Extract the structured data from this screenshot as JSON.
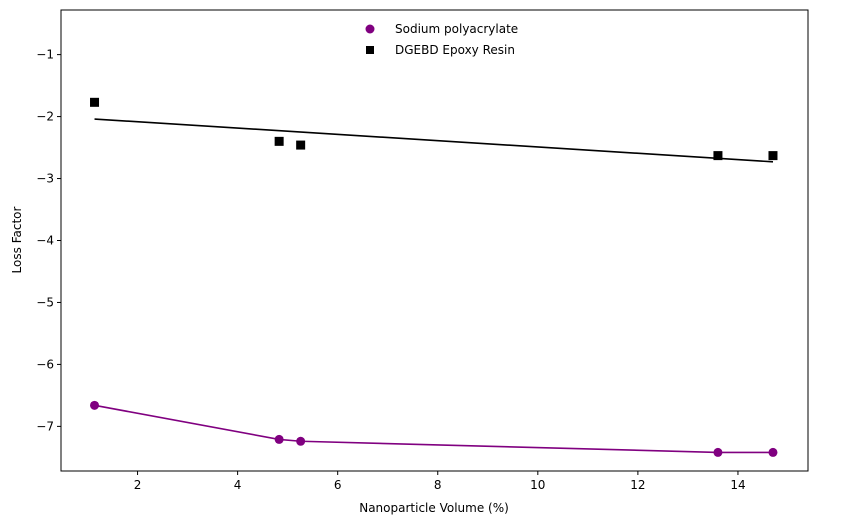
{
  "chart_data": {
    "type": "scatter",
    "title": "",
    "xlabel": "Nanoparticle Volume (%)",
    "ylabel": "Loss Factor",
    "xlim": [
      0.47,
      15.4
    ],
    "ylim": [
      -7.72,
      -0.28
    ],
    "xticks": [
      2,
      4,
      6,
      8,
      10,
      12,
      14
    ],
    "yticks": [
      -7,
      -6,
      -5,
      -4,
      -3,
      -2,
      -1
    ],
    "grid": false,
    "legend_position": "top-center",
    "series": [
      {
        "name": "Sodium polyacrylate",
        "marker": "circle",
        "color": "#800080",
        "points": [
          {
            "x": 1.14,
            "y": -6.66
          },
          {
            "x": 4.83,
            "y": -7.21
          },
          {
            "x": 5.26,
            "y": -7.24
          },
          {
            "x": 13.6,
            "y": -7.42
          },
          {
            "x": 14.7,
            "y": -7.42
          }
        ],
        "fit_line": [
          {
            "x": 1.14,
            "y": -6.66
          },
          {
            "x": 4.83,
            "y": -7.21
          },
          {
            "x": 5.26,
            "y": -7.24
          },
          {
            "x": 13.6,
            "y": -7.42
          },
          {
            "x": 14.7,
            "y": -7.42
          }
        ]
      },
      {
        "name": "DGEBD Epoxy Resin",
        "marker": "square",
        "color": "#000000",
        "points": [
          {
            "x": 1.14,
            "y": -1.77
          },
          {
            "x": 4.83,
            "y": -2.4
          },
          {
            "x": 5.26,
            "y": -2.46
          },
          {
            "x": 13.6,
            "y": -2.63
          },
          {
            "x": 14.7,
            "y": -2.63
          }
        ],
        "fit_line": [
          {
            "x": 1.14,
            "y": -2.04
          },
          {
            "x": 14.7,
            "y": -2.73
          }
        ]
      }
    ]
  }
}
